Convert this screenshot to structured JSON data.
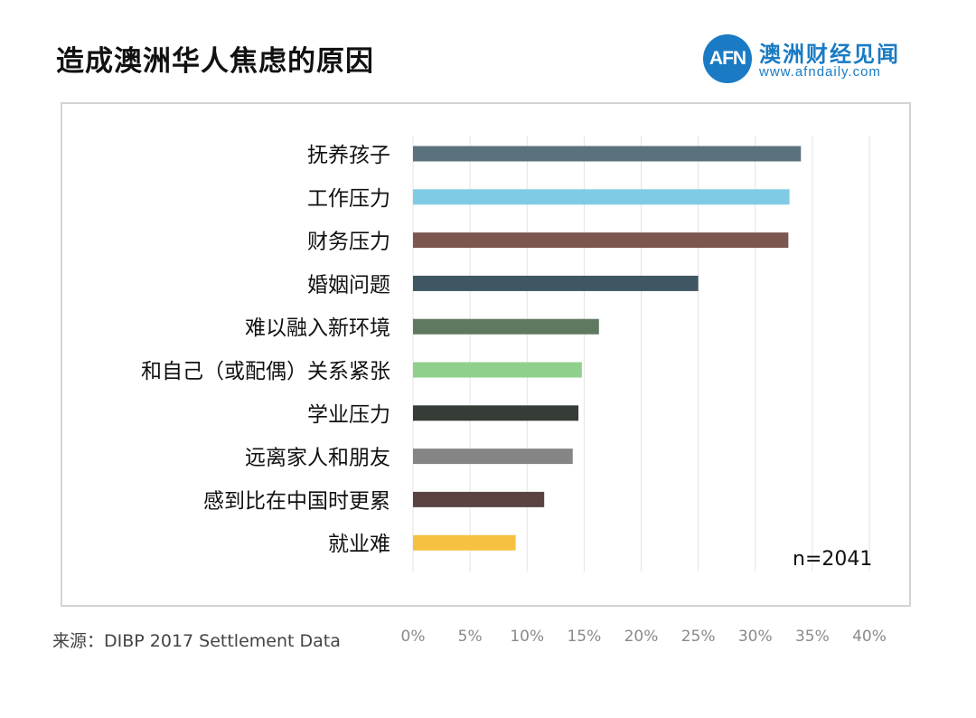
{
  "title": "造成澳洲华人焦虑的原因",
  "logo": {
    "mark": "AFN",
    "name": "澳洲财经见闻",
    "url": "www.afndaily.com",
    "color": "#1a7bc4"
  },
  "source": "来源：DIBP 2017 Settlement Data",
  "chart_data": {
    "type": "bar",
    "orientation": "horizontal",
    "categories": [
      "抚养孩子",
      "工作压力",
      "财务压力",
      "婚姻问题",
      "难以融入新环境",
      "和自己（或配偶）关系紧张",
      "学业压力",
      "远离家人和朋友",
      "感到比在中国时更累",
      "就业难"
    ],
    "values": [
      34,
      33,
      32.9,
      25,
      16.3,
      14.8,
      14.5,
      14,
      11.5,
      9
    ],
    "colors": [
      "#5b717c",
      "#7fcbe5",
      "#7b5750",
      "#3f5663",
      "#5f7860",
      "#8fd08c",
      "#353d36",
      "#858585",
      "#5a4341",
      "#f6c140"
    ],
    "xlim": [
      0,
      40
    ],
    "xticks": [
      "0%",
      "5%",
      "10%",
      "15%",
      "20%",
      "25%",
      "30%",
      "35%",
      "40%"
    ],
    "grid": true,
    "annotation": "n=2041"
  }
}
